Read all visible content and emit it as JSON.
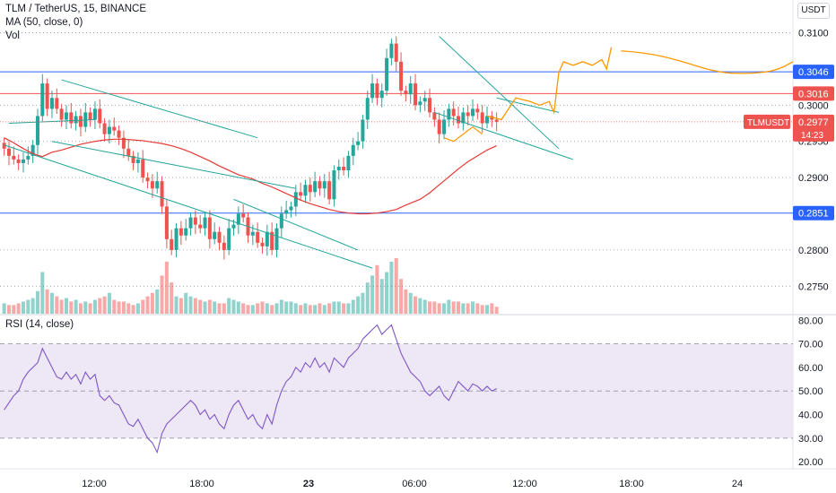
{
  "header": {
    "symbol_line": "TLM / TetherUS, 15, BINANCE",
    "ma_label": "MA (50, close, 0)",
    "vol_label": "Vol",
    "rsi_label": "RSI (14, close)",
    "currency": "USDT"
  },
  "colors": {
    "up": "#26a69a",
    "down": "#ef5350",
    "ma": "#e53935",
    "trend": "#26a69a",
    "support_resistance_blue": "#2962ff",
    "resistance_red": "#ef5350",
    "projection": "#ff9800",
    "rsi_line": "#7e57c2",
    "rsi_band": "#ede7f6"
  },
  "chart_data": [
    {
      "type": "candlestick",
      "title": "TLM / TetherUS, 15, BINANCE",
      "ylim": [
        0.2712,
        0.3118
      ],
      "y_ticks": [
        "0.3100",
        "0.3000",
        "0.2950",
        "0.2900",
        "0.2800",
        "0.2750"
      ],
      "x_ticks": [
        "12:00",
        "18:00",
        "23",
        "06:00",
        "12:00",
        "18:00",
        "24"
      ],
      "horizontal_lines": [
        {
          "label": "0.3046",
          "value": 0.3046,
          "color": "#2962ff"
        },
        {
          "label": "0.3016",
          "value": 0.3016,
          "color": "#ef5350"
        },
        {
          "label": "0.2851",
          "value": 0.2851,
          "color": "#2962ff"
        }
      ],
      "last_price": {
        "symbol": "TLMUSDT",
        "value": "0.2977",
        "countdown": "14:23"
      },
      "close_series": [
        0.294,
        0.293,
        0.2925,
        0.292,
        0.2925,
        0.293,
        0.2945,
        0.2985,
        0.303,
        0.2995,
        0.301,
        0.2995,
        0.298,
        0.299,
        0.2975,
        0.2985,
        0.297,
        0.299,
        0.298,
        0.2995,
        0.2975,
        0.296,
        0.297,
        0.2965,
        0.2955,
        0.294,
        0.293,
        0.292,
        0.2925,
        0.29,
        0.2895,
        0.2885,
        0.2895,
        0.286,
        0.2815,
        0.28,
        0.283,
        0.282,
        0.283,
        0.2845,
        0.2835,
        0.283,
        0.2845,
        0.2815,
        0.2825,
        0.281,
        0.28,
        0.283,
        0.2835,
        0.285,
        0.2845,
        0.282,
        0.2825,
        0.281,
        0.2805,
        0.2825,
        0.28,
        0.283,
        0.285,
        0.2855,
        0.286,
        0.288,
        0.2875,
        0.289,
        0.288,
        0.2895,
        0.2885,
        0.2895,
        0.287,
        0.291,
        0.2915,
        0.291,
        0.293,
        0.2945,
        0.295,
        0.298,
        0.301,
        0.303,
        0.301,
        0.302,
        0.3065,
        0.3085,
        0.306,
        0.302,
        0.3015,
        0.303,
        0.3,
        0.3005,
        0.301,
        0.299,
        0.298,
        0.296,
        0.298,
        0.2995,
        0.2985,
        0.2975,
        0.299,
        0.2985,
        0.2995,
        0.299,
        0.2975,
        0.2985,
        0.298,
        0.2977
      ],
      "ma_series": [
        0.2955,
        0.2948,
        0.294,
        0.2933,
        0.2929,
        0.2935,
        0.2938,
        0.2942,
        0.2946,
        0.295,
        0.2952,
        0.2953,
        0.2953,
        0.2952,
        0.2951,
        0.2949,
        0.2947,
        0.2944,
        0.294,
        0.2935,
        0.2929,
        0.2923,
        0.2916,
        0.291,
        0.2904,
        0.2898,
        0.2892,
        0.2887,
        0.2881,
        0.2875,
        0.2869,
        0.2864,
        0.286,
        0.2856,
        0.2853,
        0.2851,
        0.285,
        0.285,
        0.2851,
        0.2853,
        0.2856,
        0.2862,
        0.287,
        0.2879,
        0.289,
        0.2901,
        0.2912,
        0.2922,
        0.293,
        0.2938,
        0.2944
      ],
      "trendlines": [
        {
          "from": [
            1,
            0.2975
          ],
          "to": [
            19,
            0.298
          ]
        },
        {
          "from": [
            12,
            0.3035
          ],
          "to": [
            53,
            0.2955
          ]
        },
        {
          "from": [
            10,
            0.295
          ],
          "to": [
            61,
            0.2885
          ]
        },
        {
          "from": [
            0,
            0.2945
          ],
          "to": [
            77,
            0.2775
          ]
        },
        {
          "from": [
            48,
            0.287
          ],
          "to": [
            74,
            0.28
          ]
        },
        {
          "from": [
            91,
            0.3095
          ],
          "to": [
            116,
            0.294
          ]
        },
        {
          "from": [
            90,
            0.299
          ],
          "to": [
            119,
            0.2925
          ]
        },
        {
          "from": [
            103,
            0.301
          ],
          "to": [
            116,
            0.299
          ]
        }
      ]
    },
    {
      "type": "bar",
      "title": "Vol",
      "values": [
        6,
        5,
        5,
        6,
        7,
        8,
        9,
        13,
        24,
        14,
        12,
        10,
        8,
        9,
        7,
        8,
        6,
        7,
        6,
        8,
        9,
        10,
        12,
        8,
        7,
        7,
        6,
        5,
        6,
        8,
        10,
        12,
        14,
        22,
        30,
        18,
        10,
        9,
        12,
        10,
        9,
        8,
        7,
        8,
        7,
        6,
        6,
        9,
        8,
        7,
        6,
        5,
        5,
        6,
        7,
        6,
        5,
        6,
        8,
        7,
        7,
        6,
        5,
        6,
        5,
        5,
        6,
        5,
        6,
        7,
        7,
        6,
        6,
        8,
        10,
        12,
        18,
        22,
        28,
        20,
        24,
        30,
        32,
        20,
        14,
        12,
        10,
        9,
        8,
        7,
        7,
        6,
        6,
        8,
        7,
        7,
        6,
        6,
        7,
        6,
        5,
        5,
        6,
        4
      ]
    },
    {
      "type": "line",
      "title": "RSI (14, close)",
      "ylim": [
        17,
        82
      ],
      "y_ticks": [
        "80.00",
        "70.00",
        "60.00",
        "50.00",
        "40.00",
        "30.00",
        "20.00"
      ],
      "bands": [
        30,
        50,
        70
      ],
      "values": [
        42,
        45,
        48,
        50,
        55,
        58,
        60,
        62,
        68,
        64,
        60,
        56,
        55,
        58,
        55,
        57,
        53,
        58,
        55,
        57,
        48,
        46,
        48,
        45,
        44,
        40,
        36,
        35,
        38,
        34,
        30,
        28,
        24,
        32,
        36,
        38,
        40,
        42,
        44,
        46,
        44,
        40,
        42,
        38,
        40,
        36,
        34,
        40,
        44,
        46,
        42,
        38,
        40,
        36,
        34,
        40,
        36,
        44,
        50,
        54,
        56,
        60,
        58,
        62,
        60,
        64,
        60,
        62,
        58,
        64,
        62,
        60,
        64,
        66,
        68,
        72,
        74,
        76,
        78,
        74,
        76,
        78,
        72,
        66,
        62,
        58,
        56,
        54,
        50,
        48,
        50,
        52,
        48,
        46,
        50,
        54,
        52,
        50,
        53,
        52,
        50,
        52,
        50,
        51
      ]
    }
  ]
}
